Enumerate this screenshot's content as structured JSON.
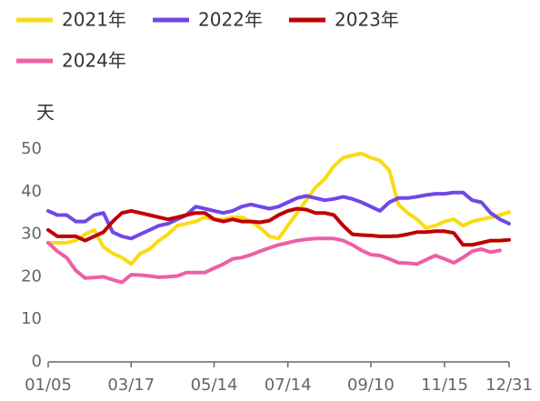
{
  "chart_data": {
    "type": "line",
    "ylabel": "天",
    "legend": "top",
    "categories": [
      "01/05",
      null,
      null,
      null,
      null,
      null,
      null,
      null,
      null,
      "03/17",
      null,
      null,
      null,
      null,
      null,
      null,
      null,
      null,
      "05/14",
      null,
      null,
      null,
      null,
      null,
      null,
      null,
      "07/14",
      null,
      null,
      null,
      null,
      null,
      null,
      null,
      null,
      "09/10",
      null,
      null,
      null,
      null,
      null,
      null,
      null,
      "11/15",
      null,
      null,
      null,
      null,
      null,
      null,
      "12/31"
    ],
    "ylim": [
      0,
      50
    ],
    "yticks": [
      0,
      10,
      20,
      30,
      40,
      50
    ],
    "series": [
      {
        "name": "2021年",
        "color": "#fadb14",
        "values": [
          28,
          28,
          28,
          28.5,
          30,
          31,
          27,
          25.5,
          24.5,
          23,
          25.5,
          26.5,
          28.5,
          30,
          32,
          32.5,
          33,
          34,
          33.5,
          33.5,
          34,
          34,
          33,
          31.5,
          29.5,
          29,
          32,
          35,
          38,
          41,
          43,
          46,
          48,
          48.5,
          49,
          48,
          47.3,
          45,
          37,
          35,
          33.5,
          31.5,
          32,
          33,
          33.5,
          32,
          33,
          33.5,
          34,
          34.5,
          35.2
        ]
      },
      {
        "name": "2022年",
        "color": "#6f48e6",
        "values": [
          35.5,
          34.5,
          34.5,
          33,
          33,
          34.5,
          35,
          30.5,
          29.5,
          29,
          30,
          31,
          32,
          32.5,
          33.5,
          34.5,
          36.5,
          36,
          35.5,
          35,
          35.5,
          36.5,
          37,
          36.5,
          36,
          36.5,
          37.5,
          38.5,
          39,
          38.5,
          38,
          38.3,
          38.8,
          38.3,
          37.5,
          36.5,
          35.5,
          37.5,
          38.5,
          38.5,
          38.8,
          39.2,
          39.5,
          39.5,
          39.8,
          39.8,
          38,
          37.5,
          35,
          33.5,
          32.5
        ]
      },
      {
        "name": "2023年",
        "color": "#c00000",
        "values": [
          31,
          29.5,
          29.5,
          29.5,
          28.5,
          29.5,
          30.5,
          33,
          35,
          35.5,
          35,
          34.5,
          34,
          33.5,
          34,
          34.5,
          35,
          35,
          33.5,
          33,
          33.5,
          33,
          33,
          32.8,
          33.2,
          34.5,
          35.5,
          36,
          35.8,
          35,
          35,
          34.5,
          32,
          30,
          29.8,
          29.7,
          29.5,
          29.5,
          29.6,
          30,
          30.5,
          30.5,
          30.7,
          30.7,
          30.3,
          27.5,
          27.5,
          28,
          28.5,
          28.5,
          28.7
        ]
      },
      {
        "name": "2024年",
        "color": "#ee5fa5",
        "values": [
          28,
          26,
          24.5,
          21.5,
          19.7,
          19.8,
          20,
          19.3,
          18.7,
          20.5,
          20.4,
          20.2,
          19.9,
          20,
          20.2,
          21,
          21,
          21,
          22,
          23,
          24.2,
          24.5,
          25.2,
          26,
          26.8,
          27.5,
          28,
          28.5,
          28.8,
          29,
          29,
          29,
          28.5,
          27.5,
          26.2,
          25.2,
          25,
          24.2,
          23.3,
          23.2,
          23,
          24,
          25,
          24.2,
          23.3,
          24.5,
          26,
          26.5,
          25.8,
          26.2,
          null
        ]
      }
    ]
  }
}
